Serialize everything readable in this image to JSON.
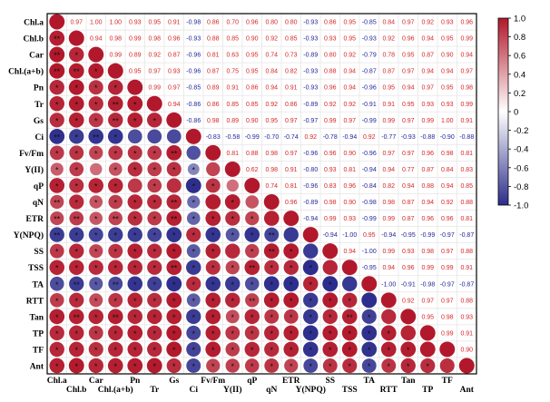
{
  "chart_data": {
    "type": "heatmap",
    "variables": [
      "Chl.a",
      "Chl.b",
      "Car",
      "Chl.(a+b)",
      "Pn",
      "Tr",
      "Gs",
      "Ci",
      "Fv/Fm",
      "Y(II)",
      "qP",
      "qN",
      "ETR",
      "Y(NPQ)",
      "SS",
      "TSS",
      "TA",
      "RTT",
      "Tan",
      "TP",
      "TF",
      "Ant"
    ],
    "upper": [
      [
        0.97,
        1.0,
        1.0,
        0.93,
        0.95,
        0.91,
        -0.98,
        0.86,
        0.7,
        0.96,
        0.8,
        0.8,
        -0.93,
        0.86,
        0.95,
        -0.85,
        0.84,
        0.97,
        0.92,
        0.93,
        0.96
      ],
      [
        0.94,
        0.98,
        0.99,
        0.98,
        0.96,
        -0.93,
        0.88,
        0.85,
        0.9,
        0.92,
        0.85,
        -0.93,
        0.93,
        0.95,
        -0.93,
        0.92,
        0.96,
        0.94,
        0.95,
        0.99
      ],
      [
        0.99,
        0.89,
        0.92,
        0.87,
        -0.96,
        0.81,
        0.63,
        0.95,
        0.74,
        0.73,
        -0.89,
        0.8,
        0.92,
        -0.79,
        0.78,
        0.95,
        0.87,
        0.9,
        0.94
      ],
      [
        0.95,
        0.97,
        0.93,
        -0.96,
        0.87,
        0.75,
        0.95,
        0.84,
        0.82,
        -0.93,
        0.88,
        0.94,
        -0.87,
        0.87,
        0.97,
        0.94,
        0.94,
        0.97
      ],
      [
        0.99,
        0.97,
        -0.85,
        0.89,
        0.91,
        0.86,
        0.94,
        0.91,
        -0.93,
        0.96,
        0.94,
        -0.96,
        0.95,
        0.94,
        0.97,
        0.95,
        0.98
      ],
      [
        0.94,
        -0.86,
        0.86,
        0.85,
        0.85,
        0.92,
        0.86,
        -0.89,
        0.92,
        0.92,
        -0.91,
        0.91,
        0.95,
        0.93,
        0.93,
        0.99
      ],
      [
        -0.86,
        0.98,
        0.89,
        0.9,
        0.95,
        0.97,
        -0.97,
        0.99,
        0.97,
        -0.99,
        0.99,
        0.97,
        0.99,
        1.0,
        0.91
      ],
      [
        -0.83,
        -0.58,
        -0.99,
        -0.7,
        -0.74,
        0.92,
        -0.78,
        -0.94,
        0.92,
        -0.77,
        -0.93,
        -0.88,
        -0.9,
        -0.88
      ],
      [
        0.81,
        0.88,
        0.98,
        0.97,
        -0.96,
        0.96,
        0.9,
        -0.96,
        0.97,
        0.97,
        0.96,
        0.98,
        0.81
      ],
      [
        0.62,
        0.98,
        0.91,
        -0.8,
        0.93,
        0.81,
        -0.94,
        0.94,
        0.77,
        0.87,
        0.84,
        0.83
      ],
      [
        0.74,
        0.81,
        -0.96,
        0.83,
        0.96,
        -0.84,
        0.82,
        0.94,
        0.88,
        0.94,
        0.85
      ],
      [
        0.96,
        -0.89,
        0.98,
        0.9,
        -0.98,
        0.98,
        0.87,
        0.94,
        0.92,
        0.88
      ],
      [
        -0.94,
        0.99,
        0.93,
        -0.99,
        0.99,
        0.87,
        0.96,
        0.96,
        0.81
      ],
      [
        -0.94,
        -1.0,
        0.95,
        -0.94,
        -0.95,
        -0.99,
        -0.97,
        -0.87
      ],
      [
        0.94,
        -1.0,
        0.99,
        0.93,
        0.98,
        0.97,
        0.88
      ],
      [
        -0.95,
        0.94,
        0.96,
        0.99,
        0.99,
        0.91
      ],
      [
        -1.0,
        -0.91,
        -0.98,
        -0.97,
        -0.87
      ],
      [
        0.92,
        0.97,
        0.97,
        0.88
      ],
      [
        0.95,
        0.98,
        0.93
      ],
      [
        0.99,
        0.91
      ],
      [
        0.9
      ]
    ],
    "lower_stars": [
      [
        "**"
      ],
      [
        "**",
        "*"
      ],
      [
        "**",
        "**",
        "*"
      ],
      [
        "*",
        "*",
        "*",
        "*"
      ],
      [
        "*",
        "*",
        "*",
        "**",
        "*"
      ],
      [
        "*",
        "*",
        "*",
        "**",
        "*",
        "*"
      ],
      [
        "**",
        "*",
        "**",
        "*",
        "",
        ""
      ],
      [
        "*",
        "*",
        "*",
        "*",
        "*",
        "*",
        "**",
        ""
      ],
      [
        "*",
        "*",
        "",
        "*",
        "*",
        "*",
        "*",
        "*",
        ""
      ],
      [
        "*",
        "*",
        "*",
        "*",
        "",
        "*",
        "",
        "*",
        "*",
        ""
      ],
      [
        "**",
        "*",
        "*",
        "*",
        "*",
        "*",
        "**",
        "*",
        "",
        "*",
        ""
      ],
      [
        "**",
        "**",
        "*",
        "**",
        "*",
        "*",
        "**",
        "*",
        "*",
        "*",
        "*",
        ""
      ],
      [
        "**",
        "*",
        "*",
        "*",
        "*",
        "*",
        "*",
        "*",
        "*",
        "*",
        "*",
        "**",
        ""
      ],
      [
        "*",
        "*",
        "*",
        "*",
        "*",
        "*",
        "*",
        "*",
        "*",
        "",
        "*",
        "**",
        "*",
        ""
      ],
      [
        "*",
        "*",
        "*",
        "*",
        "*",
        "*",
        "**",
        "*",
        "*",
        "*",
        "**",
        "*",
        "*",
        "*",
        ""
      ],
      [
        "*",
        "**",
        "*",
        "**",
        "*",
        "*",
        "*",
        "*",
        "*",
        "*",
        "*",
        "*",
        "*",
        "*",
        "*",
        ""
      ],
      [
        "*",
        "*",
        "*",
        "*",
        "*",
        "*",
        "*",
        "*",
        "*",
        "*",
        "**",
        "*",
        "*",
        "*",
        "*",
        "*",
        ""
      ],
      [
        "*",
        "**",
        "*",
        "**",
        "*",
        "*",
        "*",
        "*",
        "*",
        "*",
        "*",
        "*",
        "*",
        "*",
        "*",
        "**",
        "*",
        ""
      ],
      [
        "*",
        "*",
        "*",
        "*",
        "*",
        "*",
        "*",
        "*",
        "*",
        "*",
        "*",
        "*",
        "*",
        "*",
        "*",
        "*",
        "*",
        "*",
        ""
      ],
      [
        "*",
        "*",
        "*",
        "*",
        "*",
        "*",
        "*",
        "*",
        "*",
        "*",
        "*",
        "*",
        "*",
        "*",
        "*",
        "*",
        "*",
        "*",
        "*",
        ""
      ],
      [
        "*",
        "*",
        "*",
        "*",
        "*",
        "*",
        "*",
        "*",
        "*",
        "*",
        "*",
        "*",
        "*",
        "*",
        "*",
        "*",
        "*",
        "*",
        "*",
        "*",
        ""
      ]
    ],
    "colorbar": {
      "ticks": [
        "1.0",
        "0.8",
        "0.6",
        "0.4",
        "0.2",
        "0",
        "-0.2",
        "-0.4",
        "-0.6",
        "-0.8",
        "-1.0"
      ],
      "vmin": -1.0,
      "vmax": 1.0
    },
    "colors": {
      "positive": "#b2182b",
      "neutral": "#ffffff",
      "negative": "#2c2d8c",
      "positive_text": "#d62728",
      "negative_text": "#1f1f9a"
    }
  }
}
